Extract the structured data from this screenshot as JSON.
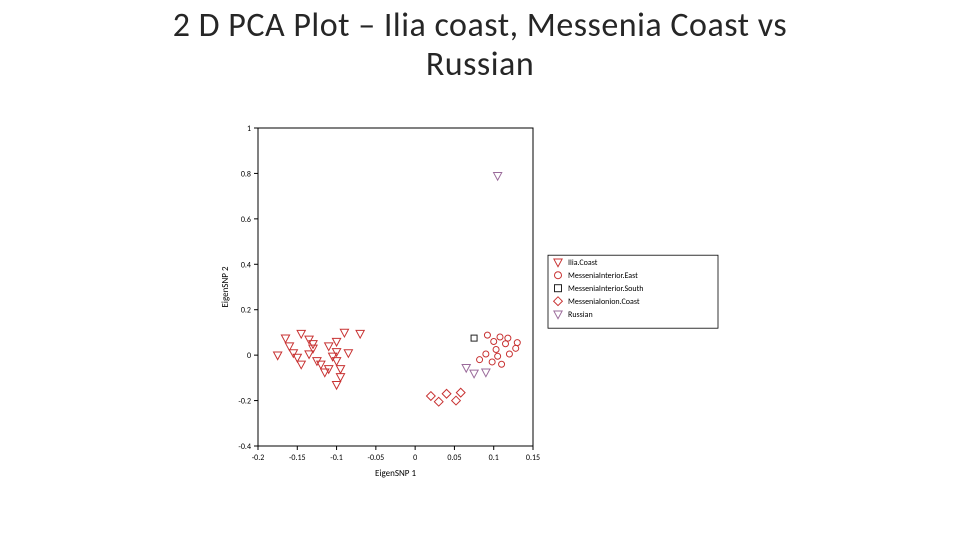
{
  "title_line1": "2 D PCA Plot – Ilia coast, Messenia Coast vs",
  "title_line2": "Russian",
  "chart": {
    "type": "scatter",
    "xlabel": "EigenSNP 1",
    "ylabel": "EigenSNP 2",
    "xlim": [
      -0.2,
      0.15
    ],
    "ylim": [
      -0.4,
      1.0
    ],
    "xticks": [
      -0.2,
      -0.15,
      -0.1,
      -0.05,
      0,
      0.05,
      0.1,
      0.15
    ],
    "yticks": [
      -0.4,
      -0.2,
      0,
      0.2,
      0.4,
      0.6,
      0.8,
      1.0
    ],
    "label_fontsize": 9,
    "tick_fontsize": 8,
    "background_color": "#ffffff",
    "axis_color": "#000000",
    "legend_fontsize": 8,
    "legend_border": "#000000",
    "series": [
      {
        "name": "Ilia.Coast",
        "marker": "triangle-down",
        "edge": "#c83232",
        "fill": "none",
        "size": 7,
        "points": [
          [
            -0.145,
            0.095
          ],
          [
            -0.09,
            0.1
          ],
          [
            -0.165,
            0.075
          ],
          [
            -0.135,
            0.07
          ],
          [
            -0.13,
            0.05
          ],
          [
            -0.16,
            0.04
          ],
          [
            -0.13,
            0.03
          ],
          [
            -0.11,
            0.04
          ],
          [
            -0.1,
            0.06
          ],
          [
            -0.1,
            0.015
          ],
          [
            -0.155,
            0.01
          ],
          [
            -0.175,
            0.0
          ],
          [
            -0.15,
            -0.01
          ],
          [
            -0.135,
            0.005
          ],
          [
            -0.125,
            -0.025
          ],
          [
            -0.105,
            -0.005
          ],
          [
            -0.1,
            -0.025
          ],
          [
            -0.085,
            0.01
          ],
          [
            -0.145,
            -0.04
          ],
          [
            -0.12,
            -0.04
          ],
          [
            -0.11,
            -0.06
          ],
          [
            -0.095,
            -0.06
          ],
          [
            -0.095,
            -0.095
          ],
          [
            -0.115,
            -0.075
          ],
          [
            -0.1,
            -0.13
          ],
          [
            -0.07,
            0.095
          ]
        ]
      },
      {
        "name": "MesseniaInterior.East",
        "marker": "circle",
        "edge": "#c83232",
        "fill": "none",
        "size": 6,
        "points": [
          [
            0.092,
            0.088
          ],
          [
            0.108,
            0.08
          ],
          [
            0.118,
            0.075
          ],
          [
            0.1,
            0.06
          ],
          [
            0.115,
            0.05
          ],
          [
            0.13,
            0.055
          ],
          [
            0.103,
            0.025
          ],
          [
            0.09,
            0.005
          ],
          [
            0.105,
            -0.005
          ],
          [
            0.12,
            0.005
          ],
          [
            0.128,
            0.03
          ],
          [
            0.082,
            -0.02
          ],
          [
            0.098,
            -0.03
          ],
          [
            0.11,
            -0.04
          ]
        ]
      },
      {
        "name": "MesseniaInterior.South",
        "marker": "square",
        "edge": "#222222",
        "fill": "none",
        "size": 6,
        "points": [
          [
            0.075,
            0.075
          ]
        ]
      },
      {
        "name": "MesseniaIonion.Coast",
        "marker": "diamond",
        "edge": "#c83232",
        "fill": "none",
        "size": 7,
        "points": [
          [
            0.02,
            -0.18
          ],
          [
            0.04,
            -0.17
          ],
          [
            0.058,
            -0.165
          ],
          [
            0.03,
            -0.205
          ],
          [
            0.052,
            -0.2
          ]
        ]
      },
      {
        "name": "Russian",
        "marker": "triangle-down",
        "edge": "#9a6a9a",
        "fill": "none",
        "size": 7,
        "points": [
          [
            0.105,
            0.79
          ],
          [
            0.075,
            -0.08
          ],
          [
            0.09,
            -0.075
          ],
          [
            0.065,
            -0.055
          ]
        ]
      }
    ]
  }
}
